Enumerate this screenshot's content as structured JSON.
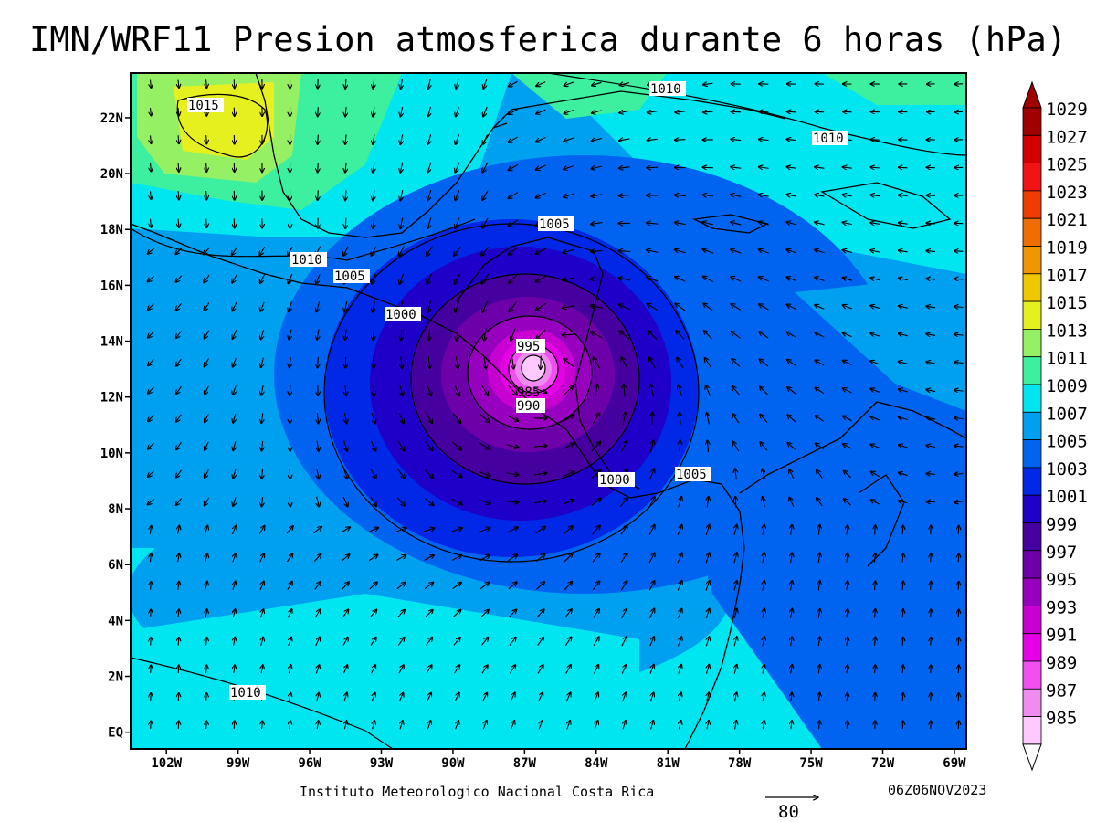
{
  "title": "IMN/WRF11 Presion atmosferica durante 6 horas (hPa)",
  "credit": "Instituto Meteorologico Nacional Costa Rica",
  "timestamp": "06Z06NOV2023",
  "reference_vector": {
    "label": "80"
  },
  "lat_labels": [
    "22N",
    "20N",
    "18N",
    "16N",
    "14N",
    "12N",
    "10N",
    "8N",
    "6N",
    "4N",
    "2N",
    "EQ"
  ],
  "lon_labels": [
    "102W",
    "99W",
    "96W",
    "93W",
    "90W",
    "87W",
    "84W",
    "81W",
    "78W",
    "75W",
    "72W",
    "69W"
  ],
  "colorbar": {
    "levels": [
      "1029",
      "1027",
      "1025",
      "1023",
      "1021",
      "1019",
      "1017",
      "1015",
      "1013",
      "1011",
      "1009",
      "1007",
      "1005",
      "1003",
      "1001",
      "999",
      "997",
      "995",
      "993",
      "991",
      "989",
      "987",
      "985"
    ],
    "colors": [
      "#a00000",
      "#d20000",
      "#f01414",
      "#f03c00",
      "#f06e00",
      "#f09600",
      "#f0c800",
      "#e6f01e",
      "#96f064",
      "#3cf0a0",
      "#00e6f0",
      "#00a0f0",
      "#0064f0",
      "#0028e6",
      "#1e00c8",
      "#4600a0",
      "#6e00aa",
      "#9600be",
      "#c800d2",
      "#e600e6",
      "#f050f0",
      "#f08cf0",
      "#ffc8ff"
    ]
  },
  "contour_labels": [
    "1015",
    "1010",
    "1010",
    "1010",
    "1005",
    "1005",
    "1005",
    "1000",
    "1000",
    "995",
    "990",
    "985",
    "1010"
  ],
  "map_features": {
    "low_center": {
      "lat": 13.0,
      "lon": -85.6
    },
    "land_outline": "coastlines-and-borders",
    "wind_barbs": "wind-vectors"
  }
}
